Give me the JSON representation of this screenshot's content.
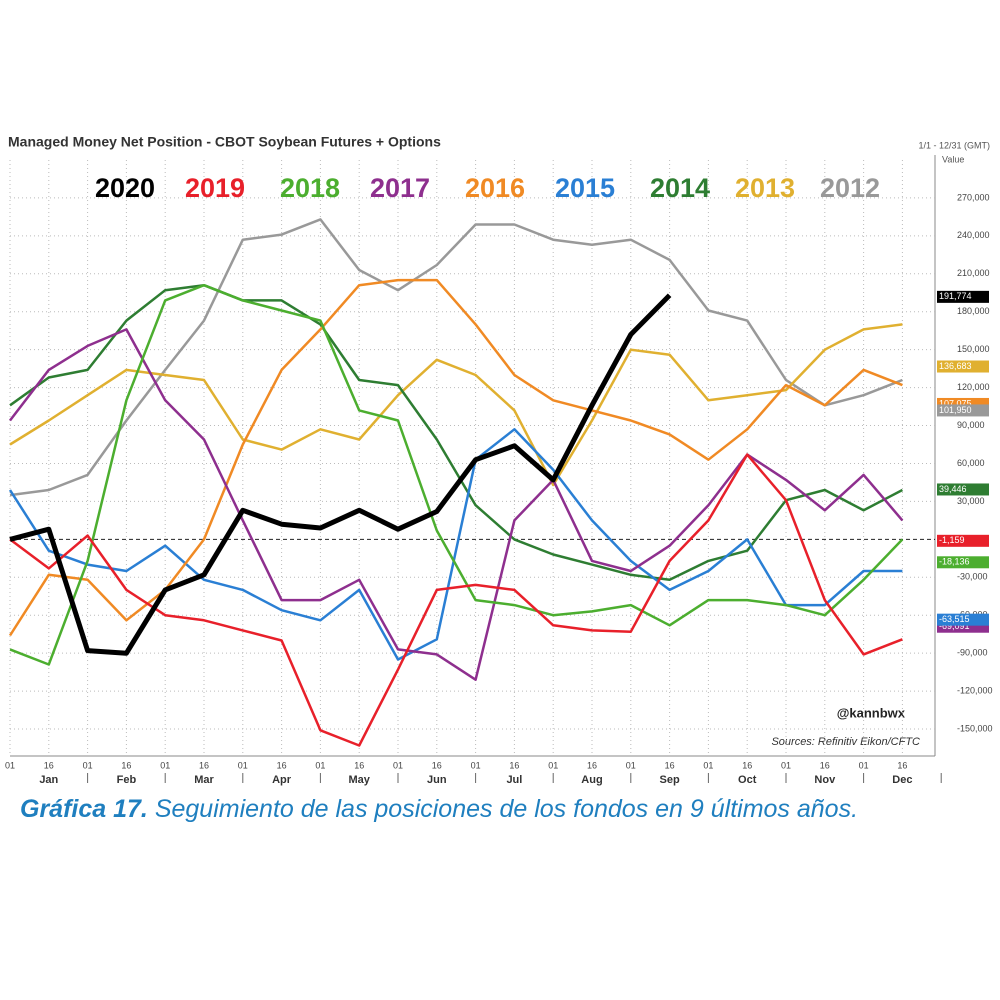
{
  "chart_data": {
    "type": "line",
    "title": "Managed Money Net Position - CBOT Soybean Futures + Options",
    "date_range": "1/1 - 12/31 (GMT)",
    "y_axis_label": "Value",
    "annotation": "@kannbwx",
    "source": "Sources: Refinitiv Eikon/CFTC",
    "caption_lead": "Gráfica 17.",
    "caption_text": "Seguimiento de las posiciones de los fondos en 9 últimos años.",
    "categories": [
      "01",
      "16",
      "01",
      "16",
      "01",
      "16",
      "01",
      "16",
      "01",
      "16",
      "01",
      "16",
      "01",
      "16",
      "01",
      "16",
      "01",
      "16",
      "01",
      "16",
      "01",
      "16",
      "01",
      "16"
    ],
    "months": [
      "Jan",
      "Feb",
      "Mar",
      "Apr",
      "May",
      "Jun",
      "Jul",
      "Aug",
      "Sep",
      "Oct",
      "Nov",
      "Dec"
    ],
    "ylim": [
      -165000,
      300000
    ],
    "yticks": [
      {
        "value": 270000,
        "label": "270,000"
      },
      {
        "value": 240000,
        "label": "240,000"
      },
      {
        "value": 210000,
        "label": "210,000"
      },
      {
        "value": 180000,
        "label": "180,000"
      },
      {
        "value": 150000,
        "label": "150,000"
      },
      {
        "value": 120000,
        "label": "120,000"
      },
      {
        "value": 90000,
        "label": "90,000"
      },
      {
        "value": 60000,
        "label": "60,000"
      },
      {
        "value": 30000,
        "label": "30,000"
      },
      {
        "value": -30000,
        "label": "-30,000"
      },
      {
        "value": -60000,
        "label": "-60,000"
      },
      {
        "value": -90000,
        "label": "-90,000"
      },
      {
        "value": -120000,
        "label": "-120,000"
      },
      {
        "value": -150000,
        "label": "-150,000"
      }
    ],
    "grid": true,
    "series": [
      {
        "name": "2020",
        "color": "#000000",
        "values": [
          0,
          8000,
          -88000,
          -90000,
          -40000,
          -28000,
          23000,
          12000,
          9000,
          23000,
          8000,
          22000,
          63000,
          74000,
          47000,
          106000,
          162000,
          193000,
          null,
          null,
          null,
          null,
          null,
          null
        ],
        "end_value": 191774,
        "end_label": "191,774"
      },
      {
        "name": "2019",
        "color": "#e8202a",
        "values": [
          0,
          -23000,
          3000,
          -40000,
          -60000,
          -64000,
          -72000,
          -80000,
          -151000,
          -163000,
          -103000,
          -40000,
          -36000,
          -40000,
          -68000,
          -72000,
          -73000,
          -17000,
          15000,
          67000,
          31000,
          -48000,
          -91000,
          -79000
        ],
        "end_value": -1159,
        "end_label": "-1,159"
      },
      {
        "name": "2018",
        "color": "#4cae2f",
        "values": [
          -87000,
          -99000,
          -17000,
          110000,
          189000,
          201000,
          189000,
          181000,
          173000,
          102000,
          94000,
          7000,
          -48000,
          -52000,
          -60000,
          -57000,
          -52000,
          -68000,
          -48000,
          -48000,
          -52000,
          -60000,
          -32000,
          0
        ],
        "end_value": -18136,
        "end_label": "-18,136"
      },
      {
        "name": "2017",
        "color": "#8e2f8e",
        "values": [
          94000,
          134000,
          153000,
          166000,
          110000,
          79000,
          15000,
          -48000,
          -48000,
          -32000,
          -87000,
          -91000,
          -111000,
          15000,
          47000,
          -17000,
          -25000,
          -5000,
          27000,
          67000,
          47000,
          23000,
          51000,
          15000
        ],
        "end_value": -69091,
        "end_label": "-69,091"
      },
      {
        "name": "2016",
        "color": "#f08a24",
        "values": [
          -76000,
          -28000,
          -32000,
          -64000,
          -40000,
          0,
          75000,
          134000,
          166000,
          201000,
          205000,
          205000,
          170000,
          130000,
          110000,
          102000,
          94000,
          83000,
          63000,
          87000,
          122000,
          106000,
          134000,
          122000
        ],
        "end_value": 107075,
        "end_label": "107,075"
      },
      {
        "name": "2015",
        "color": "#2a7fd4",
        "values": [
          39000,
          -9000,
          -20000,
          -25000,
          -5000,
          -32000,
          -40000,
          -56000,
          -64000,
          -40000,
          -95000,
          -79000,
          63000,
          87000,
          55000,
          15000,
          -17000,
          -40000,
          -25000,
          0,
          -52000,
          -52000,
          -25000,
          -25000
        ],
        "end_value": -63515,
        "end_label": "-63,515"
      },
      {
        "name": "2014",
        "color": "#2e7d32",
        "values": [
          106000,
          128000,
          134000,
          173000,
          197000,
          201000,
          189000,
          189000,
          170000,
          126000,
          122000,
          79000,
          27000,
          0,
          -12000,
          -20000,
          -28000,
          -32000,
          -17000,
          -9000,
          31000,
          39000,
          23000,
          39000
        ],
        "end_value": 39446,
        "end_label": "39,446"
      },
      {
        "name": "2013",
        "color": "#e0b030",
        "values": [
          75000,
          94000,
          114000,
          134000,
          130000,
          126000,
          79000,
          71000,
          87000,
          79000,
          114000,
          142000,
          130000,
          102000,
          43000,
          94000,
          150000,
          146000,
          110000,
          114000,
          118000,
          150000,
          166000,
          170000
        ],
        "end_value": 136683,
        "end_label": "136,683"
      },
      {
        "name": "2012",
        "color": "#999999",
        "values": [
          35000,
          39000,
          51000,
          94000,
          134000,
          173000,
          237000,
          241000,
          253000,
          213000,
          197000,
          217000,
          249000,
          249000,
          237000,
          233000,
          237000,
          221000,
          181000,
          173000,
          126000,
          106000,
          114000,
          126000
        ],
        "end_value": 101950,
        "end_label": "101,950"
      }
    ]
  }
}
